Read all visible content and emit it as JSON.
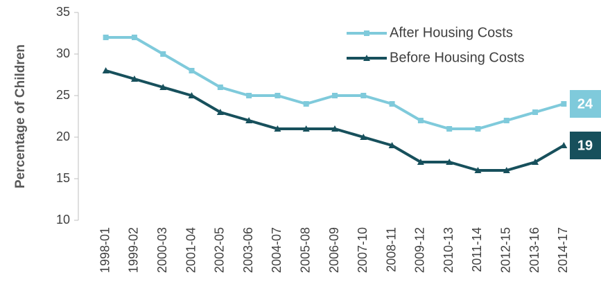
{
  "chart_data": {
    "type": "line",
    "y_label": "Percentage of Children",
    "categories": [
      "1998-01",
      "1999-02",
      "2000-03",
      "2001-04",
      "2002-05",
      "2003-06",
      "2004-07",
      "2005-08",
      "2006-09",
      "2007-10",
      "2008-11",
      "2009-12",
      "2010-13",
      "2011-14",
      "2012-15",
      "2013-16",
      "2014-17"
    ],
    "series": [
      {
        "name": "After Housing Costs",
        "color": "#7fcadb",
        "marker": "square",
        "values": [
          32,
          32,
          30,
          28,
          26,
          25,
          25,
          24,
          25,
          25,
          24,
          22,
          21,
          21,
          22,
          23,
          24
        ]
      },
      {
        "name": "Before Housing Costs",
        "color": "#17505c",
        "marker": "triangle",
        "values": [
          28,
          27,
          26,
          25,
          23,
          22,
          21,
          21,
          21,
          20,
          19,
          17,
          17,
          16,
          16,
          17,
          19
        ]
      }
    ],
    "ylim": [
      10,
      35
    ],
    "yticks": [
      10,
      15,
      20,
      25,
      30,
      35
    ],
    "grid": false,
    "legend": "top-right"
  }
}
